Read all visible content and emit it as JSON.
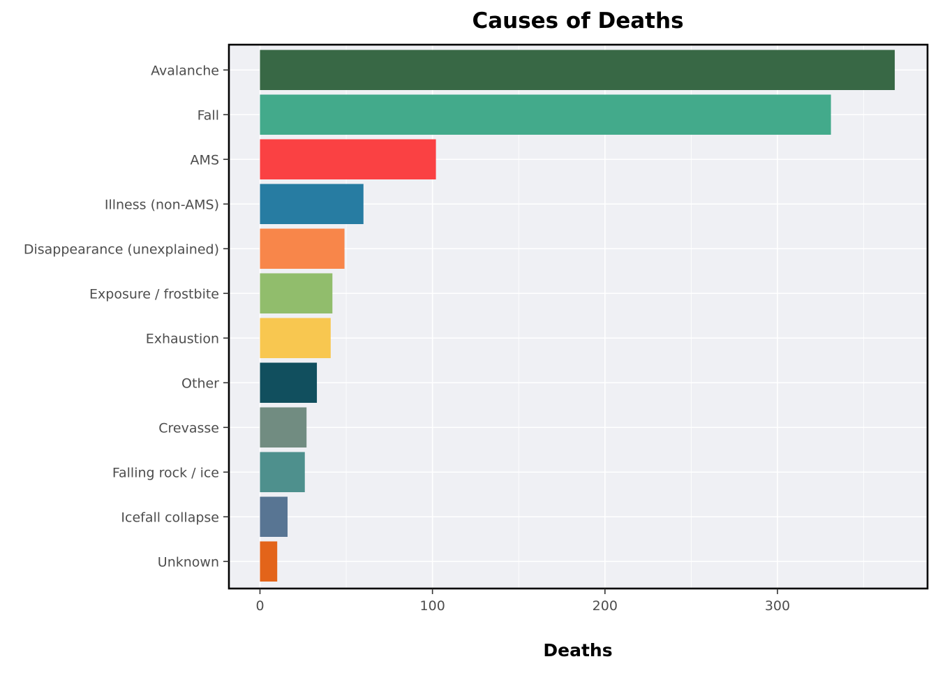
{
  "chart_data": {
    "type": "bar",
    "orientation": "horizontal",
    "title": "Causes of Deaths",
    "xlabel": "Deaths",
    "ylabel": "",
    "xlim": [
      -18,
      387
    ],
    "x_ticks": [
      0,
      100,
      200,
      300
    ],
    "grid": true,
    "legend": "none",
    "panel_background": "#eff0f4",
    "panel_border": "#000000",
    "categories": [
      "Avalanche",
      "Fall",
      "AMS",
      "Illness (non-AMS)",
      "Disappearance (unexplained)",
      "Exposure / frostbite",
      "Exhaustion",
      "Other",
      "Crevasse",
      "Falling rock / ice",
      "Icefall collapse",
      "Unknown"
    ],
    "values": [
      368,
      331,
      102,
      60,
      49,
      42,
      41,
      33,
      27,
      26,
      16,
      10
    ],
    "colors": [
      "#386845",
      "#43aa8b",
      "#fa4143",
      "#277ca2",
      "#f8864a",
      "#91bd6c",
      "#f8c750",
      "#114f5e",
      "#718c81",
      "#4e908d",
      "#587593",
      "#e3641a"
    ]
  }
}
